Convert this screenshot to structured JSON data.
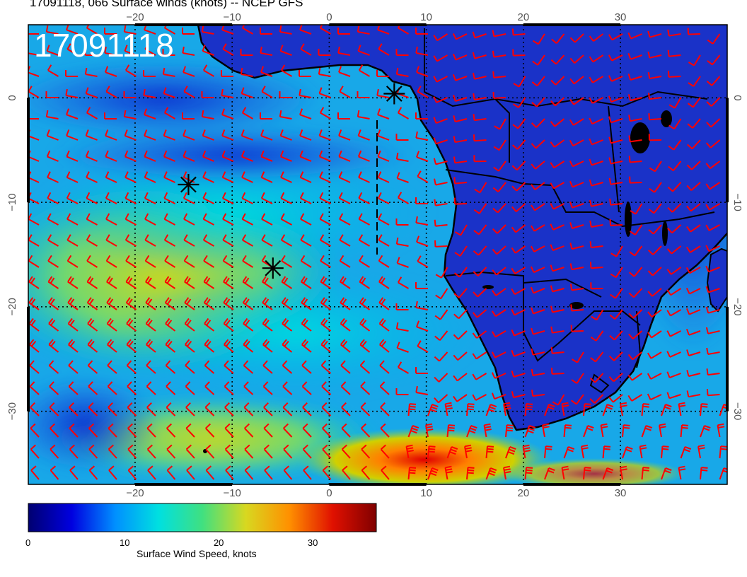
{
  "title": "17091118, 066 Surface winds (knots) -- NCEP GFS",
  "stamp": "17091118",
  "map": {
    "lon_range": [
      -31,
      41
    ],
    "lat_range": [
      -37,
      7
    ],
    "grid_lon_degrees": [
      -20,
      -10,
      0,
      10,
      20,
      30
    ],
    "grid_lat_degrees": [
      0,
      -10,
      -20,
      -30
    ],
    "lon_tick_labels": [
      "−20",
      "−10",
      "0",
      "10",
      "20",
      "30"
    ],
    "lat_tick_labels": [
      "0",
      "−10",
      "−20",
      "−30"
    ],
    "markers": [
      {
        "name": "center-marker-1",
        "lon": 6.7,
        "lat": 0.4
      },
      {
        "name": "center-marker-2",
        "lon": -14.5,
        "lat": -8.3
      },
      {
        "name": "center-marker-3",
        "lon": -5.8,
        "lat": -16.3
      }
    ],
    "colors": {
      "ocean_low": "#0a2fd8",
      "land": "#1a2fc0",
      "wind_barb": "#ff0000",
      "coast": "#000000"
    }
  },
  "colorbar": {
    "label": "Surface Wind Speed, knots",
    "ticks": [
      "0",
      "10",
      "20",
      "30"
    ],
    "tick_values": [
      0,
      10,
      20,
      30
    ],
    "range": [
      0,
      37
    ],
    "colors": [
      "#000070",
      "#0000e0",
      "#0090ff",
      "#00e0e0",
      "#40e080",
      "#d8d820",
      "#ff9000",
      "#e01000",
      "#800000"
    ]
  }
}
